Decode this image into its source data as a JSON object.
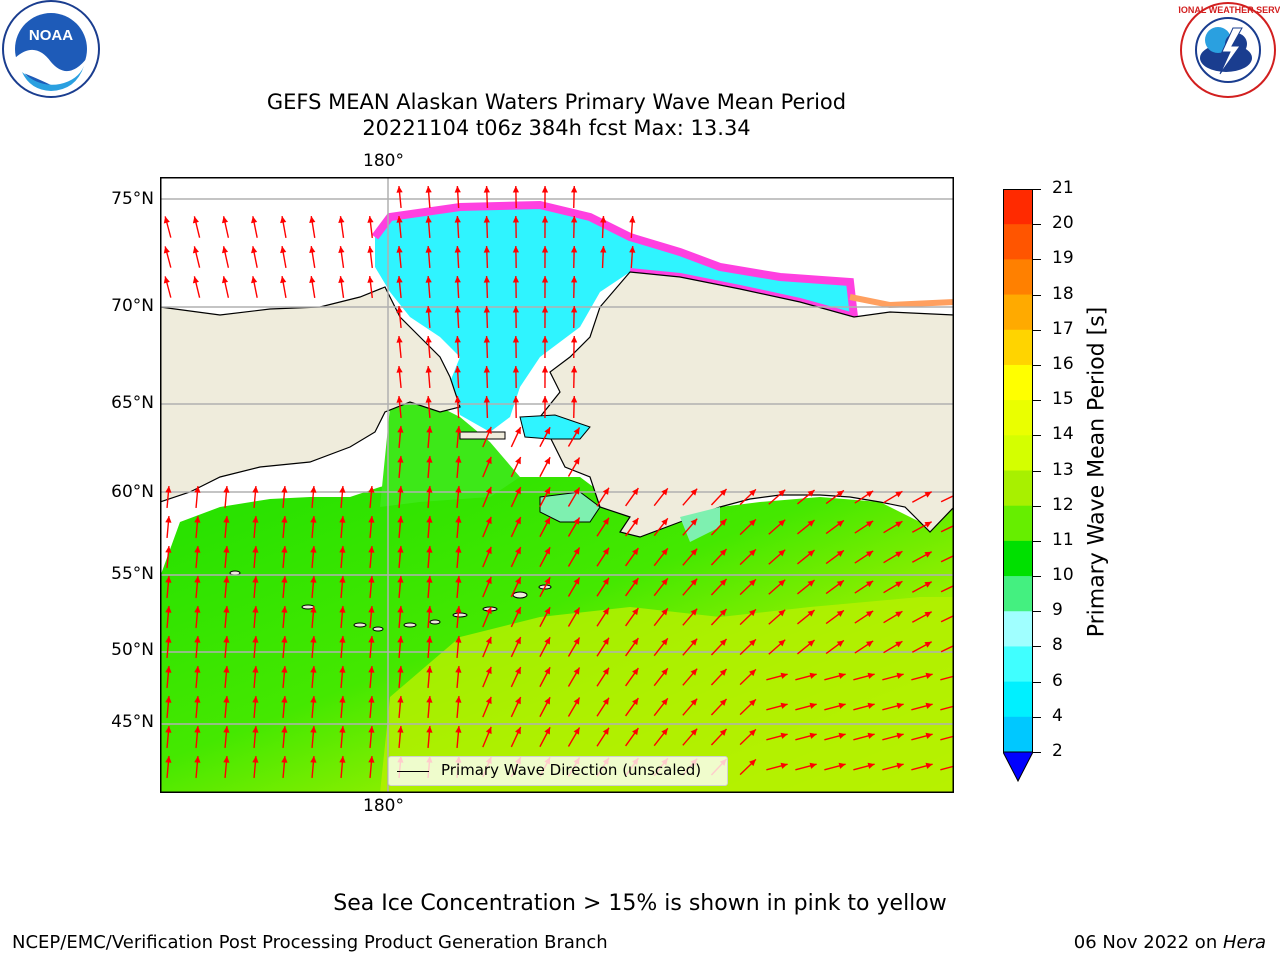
{
  "header": {
    "title_line1": "GEFS MEAN Alaskan Waters Primary Wave Mean Period",
    "title_line2": "20221104 t06z 384h fcst   Max: 13.34"
  },
  "logos": {
    "left": {
      "name": "noaa-logo",
      "text": "NOAA"
    },
    "right": {
      "name": "nws-logo",
      "text": "NATIONAL WEATHER SERVICE"
    }
  },
  "map": {
    "lat_labels": [
      "75°N",
      "70°N",
      "65°N",
      "60°N",
      "55°N",
      "50°N",
      "45°N"
    ],
    "lon_label_top": "180°",
    "lon_label_bottom": "180°",
    "legend_label": "Primary Wave Direction (unscaled)",
    "colors": {
      "land": "#efecdc",
      "ocean_green": "#22e000",
      "ocean_lime": "#a8f000",
      "ice_cyan": "#2ff4ff",
      "ice_edge_pink": "#ff40e0",
      "arrow": "#ff0000",
      "grid": "#b0b0b0"
    }
  },
  "colorbar": {
    "label": "Primary Wave Mean Period [s]",
    "ticks": [
      "21",
      "20",
      "19",
      "18",
      "17",
      "16",
      "15",
      "14",
      "13",
      "12",
      "11",
      "10",
      "9",
      "8",
      "6",
      "4",
      "2"
    ],
    "colors": [
      "#ff0000",
      "#ff2a00",
      "#ff5500",
      "#ff8000",
      "#ffaa00",
      "#ffd400",
      "#ffff00",
      "#eaff00",
      "#d4ff00",
      "#a8f000",
      "#66ee00",
      "#00e000",
      "#44f080",
      "#a0ffff",
      "#40ffff",
      "#00f0ff",
      "#00c8ff",
      "#0070ff",
      "#0000ff"
    ]
  },
  "footer": {
    "ice_note": "Sea Ice Concentration > 15% is shown in pink to yellow",
    "org": "NCEP/EMC/Verification Post Processing Product Generation Branch",
    "date": "06 Nov 2022 on ",
    "machine": "Hera"
  }
}
